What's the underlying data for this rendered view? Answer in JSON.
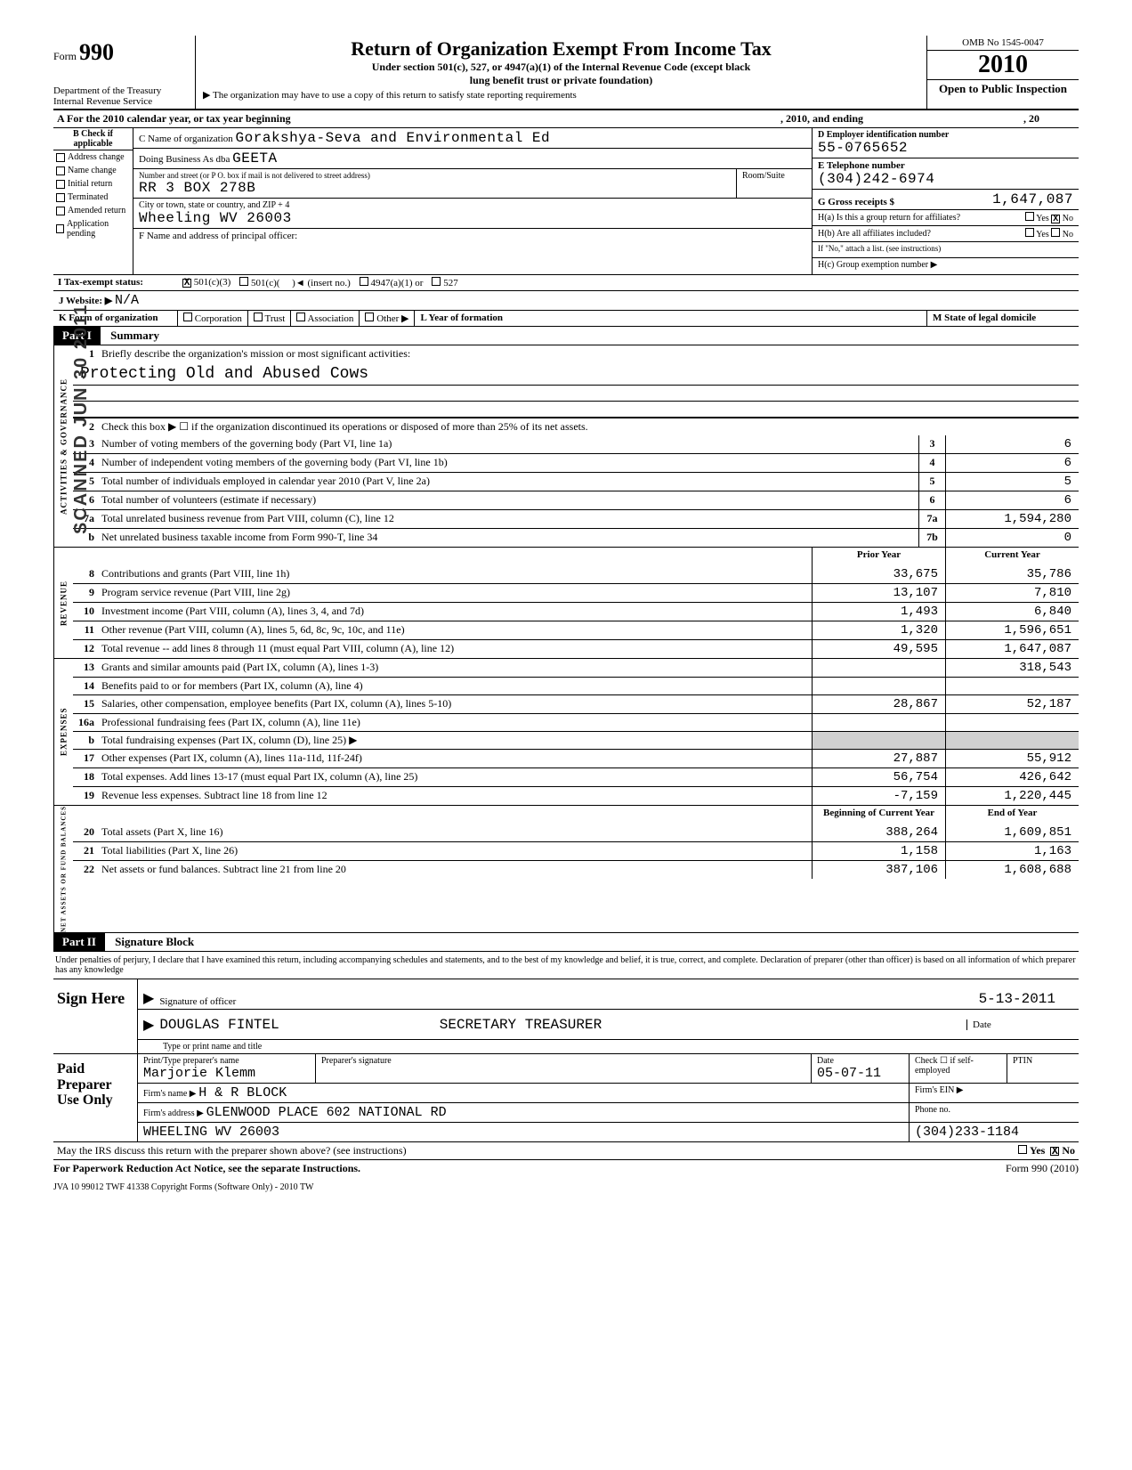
{
  "header": {
    "form_label": "Form",
    "form_number": "990",
    "dept": "Department of the Treasury",
    "irs": "Internal Revenue Service",
    "title": "Return of Organization Exempt From Income Tax",
    "sub1": "Under section 501(c), 527, or 4947(a)(1) of the Internal Revenue Code (except black",
    "sub2": "lung benefit trust or private foundation)",
    "note": "▶ The organization may have to use a copy of this return to satisfy state reporting requirements",
    "omb": "OMB No 1545-0047",
    "year": "2010",
    "open": "Open to Public Inspection"
  },
  "row_a": {
    "left": "A   For the 2010 calendar year, or tax year beginning",
    "mid": ", 2010, and ending",
    "right": ", 20"
  },
  "section_b": {
    "hd": "B Check if applicable",
    "opts": [
      "Address change",
      "Name change",
      "Initial return",
      "Terminated",
      "Amended return",
      "Application pending"
    ]
  },
  "section_c": {
    "c_lbl": "C Name of organization",
    "c_val": "Gorakshya-Seva and Environmental Ed",
    "dba_lbl": "Doing Business As dba",
    "dba_val": "GEETA",
    "addr_lbl": "Number and street (or P O. box if mail is not delivered to street address)",
    "addr_val": "RR 3 BOX 278B",
    "room_lbl": "Room/Suite",
    "city_lbl": "City or town, state or country, and ZIP + 4",
    "city_val": "Wheeling WV 26003",
    "f_lbl": "F   Name and address of principal officer:"
  },
  "section_d": {
    "d_lbl": "D Employer identification number",
    "d_val": "55-0765652",
    "e_lbl": "E Telephone number",
    "e_val": "(304)242-6974",
    "g_lbl": "G Gross receipts $",
    "g_val": "1,647,087",
    "ha_lbl": "H(a)  Is this a group return for affiliates?",
    "hb_lbl": "H(b)  Are all affiliates included?",
    "h_note": "If \"No,\" attach a list. (see instructions)",
    "hc_lbl": "H(c)   Group exemption number  ▶",
    "yes": "Yes",
    "no": "No"
  },
  "row_i": {
    "lbl": "I   Tax-exempt status:",
    "o1": "501(c)(3)",
    "o2": "501(c)(",
    "o2b": ")◄ (insert no.)",
    "o3": "4947(a)(1) or",
    "o4": "527"
  },
  "row_j": {
    "lbl": "J  Website: ▶",
    "val": "N/A"
  },
  "row_k": {
    "lbl": "K  Form of organization",
    "o1": "Corporation",
    "o2": "Trust",
    "o3": "Association",
    "o4": "Other ▶",
    "l_lbl": "L  Year of formation",
    "m_lbl": "M  State of legal domicile"
  },
  "part1": {
    "hdr": "Part I",
    "title": "Summary",
    "line1_lbl": "Briefly describe the organization's mission or most significant activities:",
    "mission": "Protecting Old and Abused Cows",
    "line2": "Check this box ▶ ☐ if the organization discontinued its operations or disposed of more than 25% of its net assets.",
    "lines_gov": [
      {
        "n": "3",
        "t": "Number of voting members of the governing body (Part VI, line 1a)",
        "box": "3",
        "v": "6"
      },
      {
        "n": "4",
        "t": "Number of independent voting members of the governing body (Part VI, line 1b)",
        "box": "4",
        "v": "6"
      },
      {
        "n": "5",
        "t": "Total number of individuals employed in calendar year 2010 (Part V, line 2a)",
        "box": "5",
        "v": "5"
      },
      {
        "n": "6",
        "t": "Total number of volunteers (estimate if necessary)",
        "box": "6",
        "v": "6"
      },
      {
        "n": "7a",
        "t": "Total unrelated business revenue from Part VIII, column (C), line 12",
        "box": "7a",
        "v": "1,594,280"
      },
      {
        "n": "b",
        "t": "Net unrelated business taxable income from Form 990-T, line 34",
        "box": "7b",
        "v": "0"
      }
    ],
    "col_hdr_prior": "Prior Year",
    "col_hdr_curr": "Current Year",
    "revenue": [
      {
        "n": "8",
        "t": "Contributions and grants (Part VIII, line 1h)",
        "p": "33,675",
        "c": "35,786"
      },
      {
        "n": "9",
        "t": "Program service revenue (Part VIII, line 2g)",
        "p": "13,107",
        "c": "7,810"
      },
      {
        "n": "10",
        "t": "Investment income (Part VIII, column (A), lines 3, 4, and 7d)",
        "p": "1,493",
        "c": "6,840"
      },
      {
        "n": "11",
        "t": "Other revenue (Part VIII, column (A), lines 5, 6d, 8c, 9c, 10c, and 11e)",
        "p": "1,320",
        "c": "1,596,651"
      },
      {
        "n": "12",
        "t": "Total revenue -- add lines 8 through 11 (must equal Part VIII, column (A), line 12)",
        "p": "49,595",
        "c": "1,647,087"
      }
    ],
    "expenses": [
      {
        "n": "13",
        "t": "Grants and similar amounts paid (Part IX, column (A), lines 1-3)",
        "p": "",
        "c": "318,543"
      },
      {
        "n": "14",
        "t": "Benefits paid to or for members (Part IX, column (A), line 4)",
        "p": "",
        "c": ""
      },
      {
        "n": "15",
        "t": "Salaries, other compensation, employee benefits (Part IX, column (A), lines 5-10)",
        "p": "28,867",
        "c": "52,187"
      },
      {
        "n": "16a",
        "t": "Professional fundraising fees (Part IX, column (A), line 11e)",
        "p": "",
        "c": ""
      },
      {
        "n": "b",
        "t": "Total fundraising expenses (Part IX, column (D), line 25)  ▶",
        "p": "",
        "c": "",
        "shaded": true
      },
      {
        "n": "17",
        "t": "Other expenses (Part IX, column (A), lines 11a-11d, 11f-24f)",
        "p": "27,887",
        "c": "55,912"
      },
      {
        "n": "18",
        "t": "Total expenses. Add lines 13-17 (must equal Part IX, column (A), line 25)",
        "p": "56,754",
        "c": "426,642"
      },
      {
        "n": "19",
        "t": "Revenue less expenses. Subtract line 18 from line 12",
        "p": "-7,159",
        "c": "1,220,445"
      }
    ],
    "col_hdr_beg": "Beginning of Current Year",
    "col_hdr_end": "End of Year",
    "netassets": [
      {
        "n": "20",
        "t": "Total assets (Part X, line 16)",
        "p": "388,264",
        "c": "1,609,851"
      },
      {
        "n": "21",
        "t": "Total liabilities (Part X, line 26)",
        "p": "1,158",
        "c": "1,163"
      },
      {
        "n": "22",
        "t": "Net assets or fund balances. Subtract line 21 from line 20",
        "p": "387,106",
        "c": "1,608,688"
      }
    ],
    "side_gov": "ACTIVITIES & GOVERNANCE",
    "side_rev": "REVENUE",
    "side_exp": "EXPENSES",
    "side_net": "NET ASSETS OR FUND BALANCES"
  },
  "part2": {
    "hdr": "Part II",
    "title": "Signature Block",
    "perjury": "Under penalties of perjury, I declare that I have examined this return, including accompanying schedules and statements, and to the best of my knowledge and belief, it is true, correct, and complete. Declaration of preparer (other than officer) is based on all information of which preparer has any knowledge",
    "sign_here": "Sign Here",
    "sig_lbl": "Signature of officer",
    "date_lbl": "Date",
    "date_val": "5-13-2011",
    "name_lbl": "Type or print name and title",
    "name_val": "DOUGLAS FINTEL",
    "title_val": "SECRETARY TREASURER",
    "paid": "Paid Preparer Use Only",
    "prep_name_lbl": "Print/Type preparer's name",
    "prep_name": "Marjorie Klemm",
    "prep_sig_lbl": "Preparer's signature",
    "prep_date_lbl": "Date",
    "prep_date": "05-07-11",
    "check_lbl": "Check ☐ if self-employed",
    "ptin_lbl": "PTIN",
    "firm_name_lbl": "Firm's name ▶",
    "firm_name": "H & R BLOCK",
    "firm_ein_lbl": "Firm's EIN ▶",
    "firm_addr_lbl": "Firm's address ▶",
    "firm_addr": "GLENWOOD PLACE 602 NATIONAL RD",
    "firm_addr2": "WHEELING WV 26003",
    "phone_lbl": "Phone no.",
    "phone": "(304)233-1184"
  },
  "footer": {
    "q": "May the IRS discuss this return with the preparer shown above? (see instructions)",
    "yes": "Yes",
    "no": "No",
    "pra": "For Paperwork Reduction Act Notice, see the separate Instructions.",
    "form": "Form 990 (2010)",
    "jva": "JVA     10  99012      TWF 41338      Copyright Forms (Software Only) - 2010 TW"
  },
  "stamp": "SCANNED  JUN 30 2011"
}
